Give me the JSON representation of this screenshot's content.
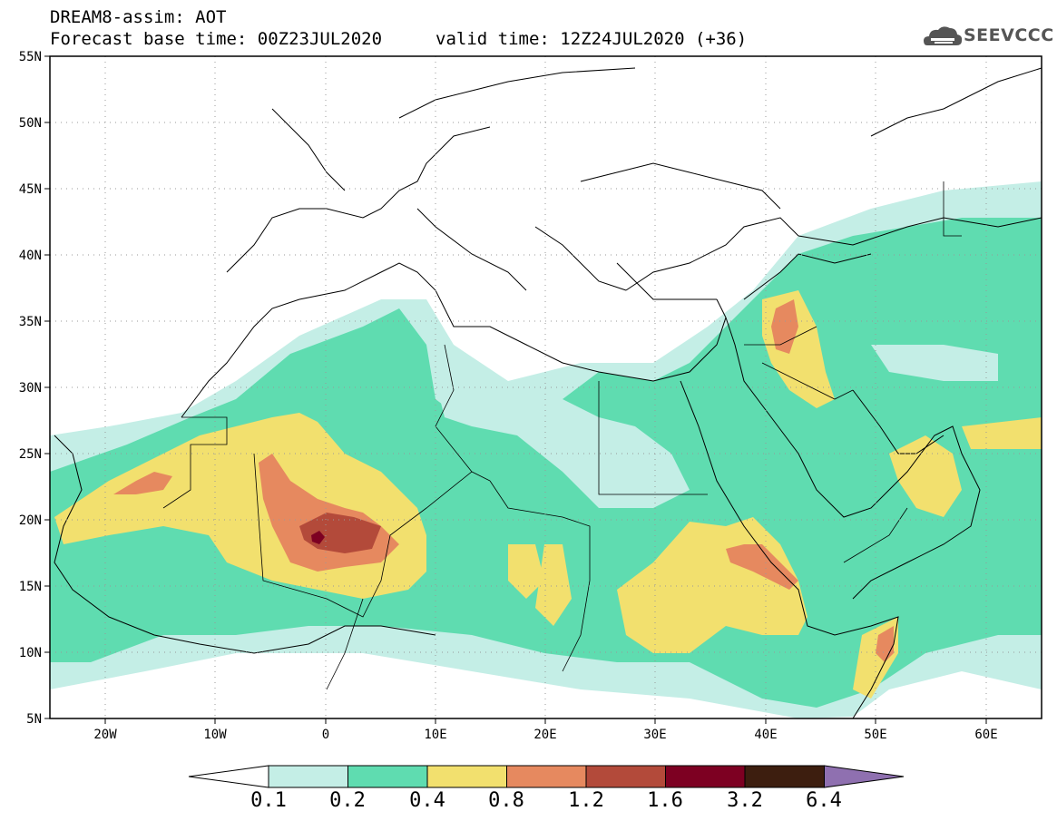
{
  "header": {
    "title": "DREAM8-assim: AOT",
    "base_time": "Forecast base time: 00Z23JUL2020",
    "valid_time": "valid time: 12Z24JUL2020 (+36)"
  },
  "logo": {
    "text": "SEEVCCC",
    "icon": "cloud-icon"
  },
  "map": {
    "variable": "AOT",
    "lon_range": [
      -25,
      65
    ],
    "lat_range": [
      5,
      55
    ],
    "lat_ticks": [
      "55N",
      "50N",
      "45N",
      "40N",
      "35N",
      "30N",
      "25N",
      "20N",
      "15N",
      "10N",
      "5N"
    ],
    "lon_ticks": [
      "20W",
      "10W",
      "0",
      "10E",
      "20E",
      "30E",
      "40E",
      "50E",
      "60E"
    ],
    "grid": "dotted"
  },
  "colorbar": {
    "levels": [
      "0.1",
      "0.2",
      "0.4",
      "0.8",
      "1.2",
      "1.6",
      "3.2",
      "6.4"
    ],
    "colors": [
      "#ffffff",
      "#c4eee6",
      "#5fdcb0",
      "#f2e06e",
      "#e6895f",
      "#b34a3a",
      "#7d0022",
      "#3d1e0f",
      "#8f70b0"
    ]
  }
}
